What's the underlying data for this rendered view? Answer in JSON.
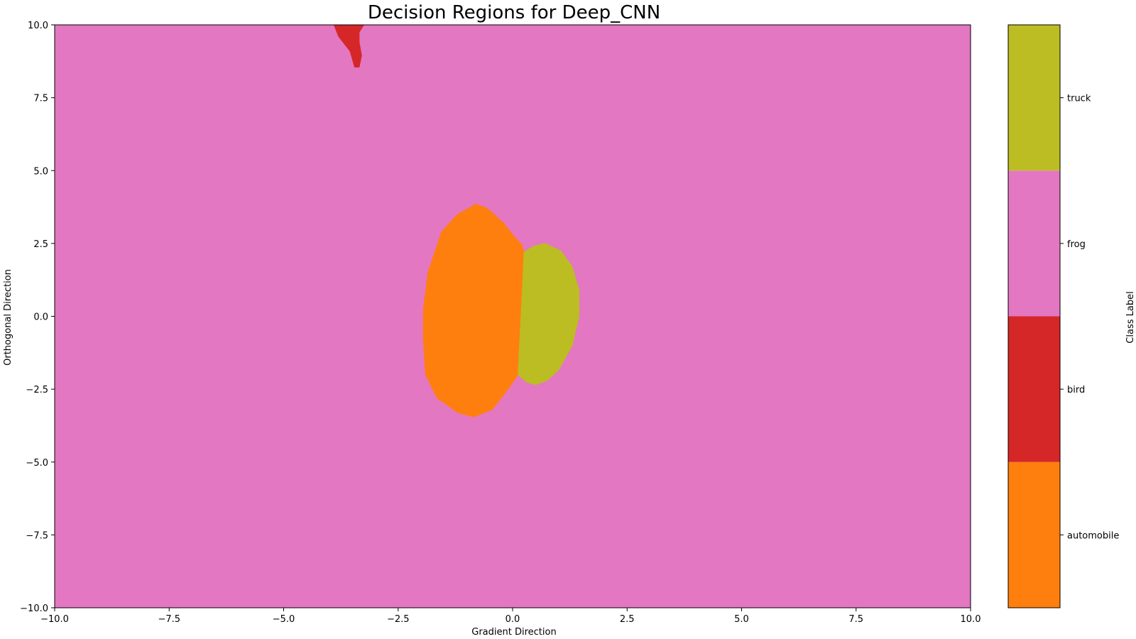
{
  "chart_data": {
    "type": "heatmap",
    "title": "Decision Regions for Deep_CNN",
    "xlabel": "Gradient Direction",
    "ylabel": "Orthogonal Direction",
    "xlim": [
      -10,
      10
    ],
    "ylim": [
      -10,
      10
    ],
    "x_ticks": [
      {
        "value": -10,
        "label": "−10.0"
      },
      {
        "value": -7.5,
        "label": "−7.5"
      },
      {
        "value": -5,
        "label": "−5.0"
      },
      {
        "value": -2.5,
        "label": "−2.5"
      },
      {
        "value": 0,
        "label": "0.0"
      },
      {
        "value": 2.5,
        "label": "2.5"
      },
      {
        "value": 5,
        "label": "5.0"
      },
      {
        "value": 7.5,
        "label": "7.5"
      },
      {
        "value": 10,
        "label": "10.0"
      }
    ],
    "y_ticks": [
      {
        "value": -10,
        "label": "−10.0"
      },
      {
        "value": -7.5,
        "label": "−7.5"
      },
      {
        "value": -5,
        "label": "−5.0"
      },
      {
        "value": -2.5,
        "label": "−2.5"
      },
      {
        "value": 0,
        "label": "0.0"
      },
      {
        "value": 2.5,
        "label": "2.5"
      },
      {
        "value": 5,
        "label": "5.0"
      },
      {
        "value": 7.5,
        "label": "7.5"
      },
      {
        "value": 10,
        "label": "10.0"
      }
    ],
    "grid": false,
    "background_class": "frog",
    "regions": [
      {
        "class": "bird",
        "polygon": [
          [
            -3.9,
            10
          ],
          [
            -3.35,
            10
          ],
          [
            -3.25,
            10.0
          ],
          [
            -3.35,
            9.75
          ],
          [
            -3.35,
            9.4
          ],
          [
            -3.3,
            8.95
          ],
          [
            -3.35,
            8.55
          ],
          [
            -3.45,
            8.55
          ],
          [
            -3.55,
            9.1
          ],
          [
            -3.8,
            9.6
          ]
        ]
      },
      {
        "class": "automobile",
        "polygon": [
          [
            -0.8,
            3.85
          ],
          [
            -0.55,
            3.7
          ],
          [
            -0.2,
            3.2
          ],
          [
            0.0,
            2.8
          ],
          [
            0.2,
            2.45
          ],
          [
            0.25,
            2.2
          ],
          [
            0.2,
            0.5
          ],
          [
            0.12,
            -2.0
          ],
          [
            -0.1,
            -2.5
          ],
          [
            -0.45,
            -3.2
          ],
          [
            -0.85,
            -3.45
          ],
          [
            -1.2,
            -3.3
          ],
          [
            -1.65,
            -2.8
          ],
          [
            -1.9,
            -2.0
          ],
          [
            -1.95,
            -0.8
          ],
          [
            -1.95,
            0.2
          ],
          [
            -1.85,
            1.5
          ],
          [
            -1.55,
            2.9
          ],
          [
            -1.2,
            3.5
          ]
        ]
      },
      {
        "class": "truck",
        "polygon": [
          [
            0.25,
            2.2
          ],
          [
            0.45,
            2.4
          ],
          [
            0.7,
            2.5
          ],
          [
            1.05,
            2.25
          ],
          [
            1.3,
            1.7
          ],
          [
            1.45,
            0.9
          ],
          [
            1.45,
            0.0
          ],
          [
            1.3,
            -1.0
          ],
          [
            1.0,
            -1.85
          ],
          [
            0.75,
            -2.2
          ],
          [
            0.5,
            -2.35
          ],
          [
            0.3,
            -2.25
          ],
          [
            0.12,
            -2.0
          ],
          [
            0.2,
            0.5
          ]
        ]
      }
    ],
    "colorbar": {
      "label": "Class Label",
      "classes": [
        {
          "name": "automobile",
          "color": "#ff7f0e"
        },
        {
          "name": "bird",
          "color": "#d62728"
        },
        {
          "name": "frog",
          "color": "#e377c2"
        },
        {
          "name": "truck",
          "color": "#bcbd22"
        }
      ]
    }
  }
}
